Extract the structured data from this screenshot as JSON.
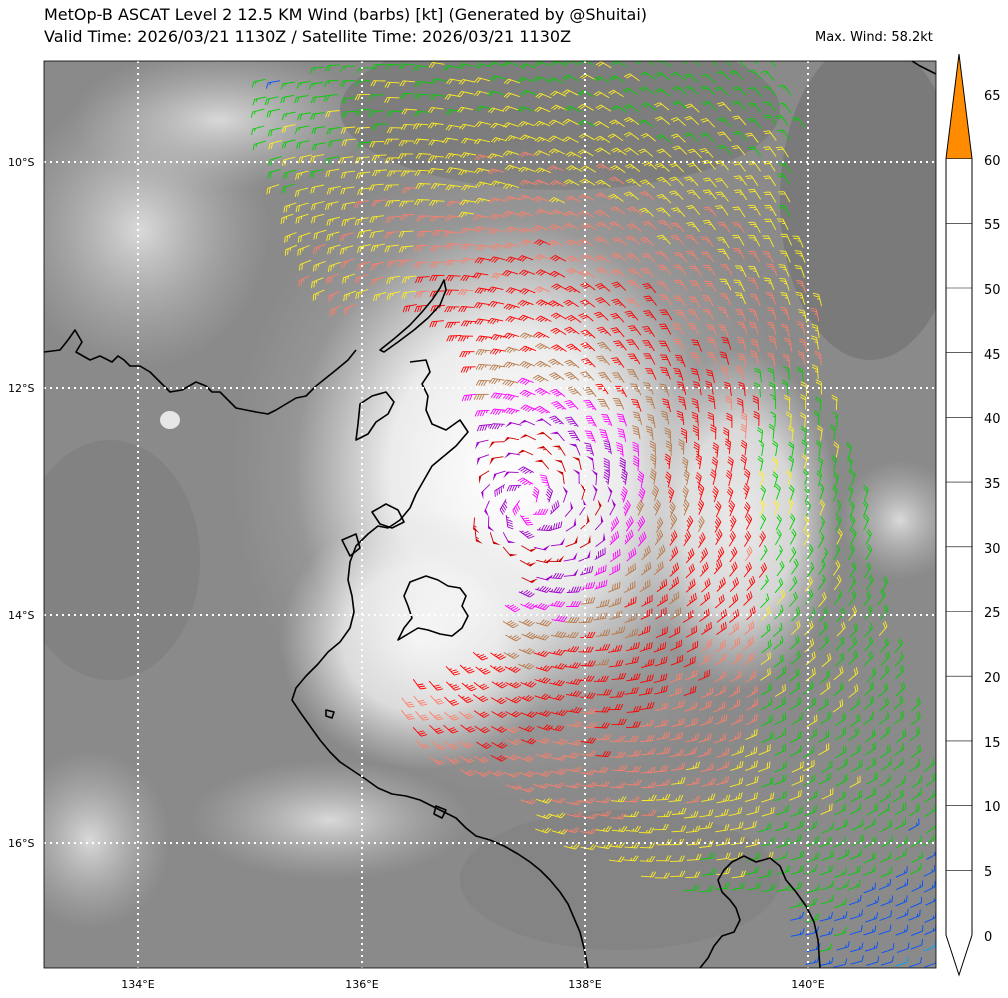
{
  "header": {
    "title_line1": "MetOp-B ASCAT Level 2 12.5 KM Wind (barbs) [kt] (Generated by @Shuitai)",
    "title_line2": "Valid Time: 2026/03/21 1130Z / Satellite Time: 2026/03/21 1130Z",
    "max_wind": "Max. Wind: 58.2kt"
  },
  "map": {
    "lat_labels": [
      "10°S",
      "12°S",
      "14°S",
      "16°S"
    ],
    "lon_labels": [
      "134°E",
      "136°E",
      "138°E",
      "140°E"
    ]
  },
  "colorbar": {
    "labels": [
      "0",
      "5",
      "10",
      "15",
      "20",
      "25",
      "30",
      "35",
      "40",
      "45",
      "50",
      "55",
      "60",
      "65"
    ],
    "colors": [
      "#ffffff",
      "#00a0ff",
      "#0050ff",
      "#00d000",
      "#ffee22",
      "#ff7f6a",
      "#ff0000",
      "#b87848",
      "#ff00ff",
      "#a000cc",
      "#cc0000",
      "#aa0000",
      "#ff8c00"
    ]
  },
  "chart_data": {
    "type": "map",
    "title": "MetOp-B ASCAT Level 2 12.5 KM Wind (barbs) [kt] (Generated by @Shuitai)",
    "variable": "10 m wind barbs [kt]",
    "lon_range": [
      133.15,
      141.15
    ],
    "lat_range": [
      -17.1,
      -9.1
    ],
    "max_wind_kt": 58.2,
    "center_lon": 137.5,
    "center_lat": -13.0
  }
}
